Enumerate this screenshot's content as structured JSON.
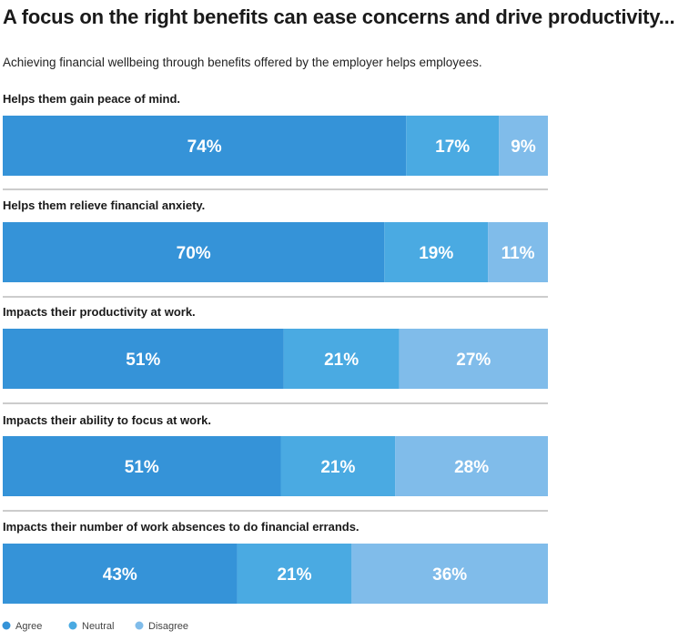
{
  "title": "A focus on the right benefits can ease concerns and drive productivity...",
  "subtitle": "Achieving financial wellbeing through benefits offered by the employer helps employees.",
  "colors": {
    "agree": "#3593d8",
    "neutral": "#4aaae2",
    "disagree": "#80bcea"
  },
  "chart_data": {
    "type": "bar",
    "orientation": "horizontal",
    "stacked": true,
    "title": "A focus on the right benefits can ease concerns and drive productivity...",
    "subtitle": "Achieving financial wellbeing through benefits offered by the employer helps employees.",
    "unit": "%",
    "categories": [
      "Helps them gain peace of mind.",
      "Helps them relieve financial anxiety.",
      "Impacts their productivity at work.",
      "Impacts their ability to focus at work.",
      "Impacts their number of work absences to do financial errands."
    ],
    "series": [
      {
        "name": "Agree",
        "color": "#3593d8",
        "values": [
          74,
          70,
          51,
          51,
          43
        ]
      },
      {
        "name": "Neutral",
        "color": "#4aaae2",
        "values": [
          17,
          19,
          21,
          21,
          21
        ]
      },
      {
        "name": "Disagree",
        "color": "#80bcea",
        "values": [
          9,
          11,
          27,
          28,
          36
        ]
      }
    ],
    "legend": [
      "Agree",
      "Neutral",
      "Disagree"
    ],
    "legend_position": "bottom-left",
    "grid": false
  }
}
